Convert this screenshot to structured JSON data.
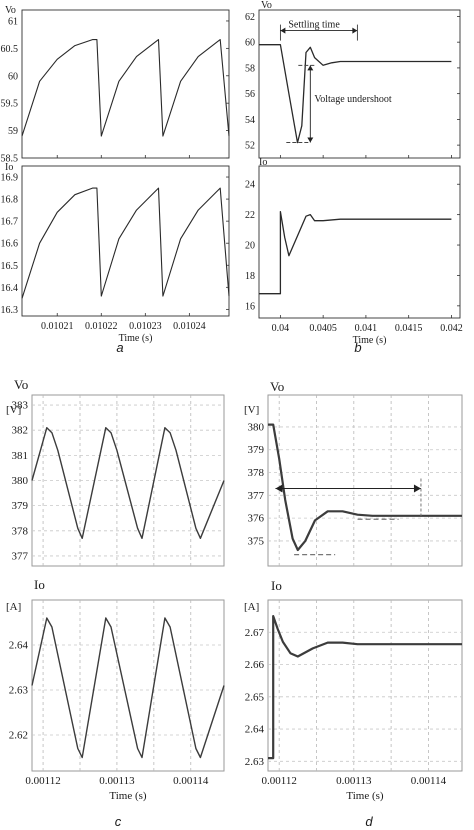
{
  "chart_data": [
    {
      "id": "a-top",
      "type": "line",
      "panel": "a",
      "ylabel": "Vo",
      "xlim": [
        0.010202,
        0.010249
      ],
      "ylim": [
        58.5,
        61.2
      ],
      "yticks": [
        "61",
        "60.5",
        "60",
        "59.5",
        "59",
        "58.5"
      ],
      "ytick_values": [
        61,
        60.5,
        60,
        59.5,
        59,
        58.5
      ],
      "xticks": [],
      "xtick_values": [
        0.01021,
        0.01022,
        0.01023,
        0.01024
      ],
      "grid": false,
      "series": [
        {
          "x": [
            0.010202,
            0.010206,
            0.01021,
            0.010214,
            0.010218,
            0.010219,
            0.01022,
            0.010224,
            0.010228,
            0.010232,
            0.010233,
            0.010234,
            0.010238,
            0.010242,
            0.010246,
            0.010247,
            0.010249
          ],
          "y": [
            58.9,
            59.9,
            60.3,
            60.55,
            60.66,
            60.66,
            58.9,
            59.9,
            60.35,
            60.6,
            60.66,
            58.9,
            59.9,
            60.35,
            60.6,
            60.66,
            58.9
          ]
        }
      ]
    },
    {
      "id": "a-bottom",
      "type": "line",
      "panel": "a",
      "ylabel": "Io",
      "xlim": [
        0.010202,
        0.010249
      ],
      "ylim": [
        16.27,
        16.95
      ],
      "yticks": [
        "16.9",
        "16.8",
        "16.7",
        "16.6",
        "16.5",
        "16.4",
        "16.3"
      ],
      "ytick_values": [
        16.9,
        16.8,
        16.7,
        16.6,
        16.5,
        16.4,
        16.3
      ],
      "xticks": [
        "0.01021",
        "0.01022",
        "0.01023",
        "0.01024"
      ],
      "xtick_values": [
        0.01021,
        0.01022,
        0.01023,
        0.01024
      ],
      "xlabel": "Time (s)",
      "grid": false,
      "series": [
        {
          "x": [
            0.010202,
            0.010206,
            0.01021,
            0.010214,
            0.010218,
            0.010219,
            0.01022,
            0.010224,
            0.010228,
            0.010232,
            0.010233,
            0.010234,
            0.010238,
            0.010242,
            0.010246,
            0.010247,
            0.010249
          ],
          "y": [
            16.35,
            16.6,
            16.74,
            16.82,
            16.85,
            16.85,
            16.36,
            16.62,
            16.75,
            16.83,
            16.85,
            16.36,
            16.62,
            16.75,
            16.83,
            16.85,
            16.36
          ]
        }
      ]
    },
    {
      "id": "b-top",
      "type": "line",
      "panel": "b",
      "ylabel": "Vo",
      "xlim": [
        0.03975,
        0.0421
      ],
      "ylim": [
        51,
        62.5
      ],
      "yticks": [
        "62",
        "60",
        "58",
        "56",
        "54",
        "52"
      ],
      "ytick_values": [
        62,
        60,
        58,
        56,
        54,
        52
      ],
      "xticks": [],
      "xtick_values": [
        0.04,
        0.0405,
        0.041,
        0.0415,
        0.042
      ],
      "grid": false,
      "series": [
        {
          "x": [
            0.03975,
            0.04,
            0.0401,
            0.0402,
            0.04025,
            0.0403,
            0.04035,
            0.0404,
            0.0405,
            0.0406,
            0.0407,
            0.042
          ],
          "y": [
            59.8,
            59.8,
            56,
            52.2,
            53.5,
            59.2,
            59.6,
            58.8,
            58.2,
            58.4,
            58.5,
            58.5
          ]
        }
      ],
      "annotations": [
        {
          "text": "Settling time",
          "x_start": 0.04,
          "x_end": 0.0409,
          "y": 60.9
        },
        {
          "text": "Voltage undershoot",
          "x": 0.04035,
          "y_top": 58.2,
          "y_bottom": 52.2
        }
      ]
    },
    {
      "id": "b-bottom",
      "type": "line",
      "panel": "b",
      "ylabel": "Io",
      "xlim": [
        0.03975,
        0.0421
      ],
      "ylim": [
        15.2,
        25.2
      ],
      "yticks": [
        "24",
        "22",
        "20",
        "18",
        "16"
      ],
      "ytick_values": [
        24,
        22,
        20,
        18,
        16
      ],
      "xticks": [
        "0.04",
        "0.0405",
        "0.041",
        "0.0415",
        "0.042"
      ],
      "xtick_values": [
        0.04,
        0.0405,
        0.041,
        0.0415,
        0.042
      ],
      "xlabel": "Time (s)",
      "grid": false,
      "series": [
        {
          "x": [
            0.03975,
            0.04,
            0.04,
            0.04005,
            0.0401,
            0.0402,
            0.0403,
            0.04035,
            0.0404,
            0.0405,
            0.0407,
            0.042
          ],
          "y": [
            16.8,
            16.8,
            22.2,
            20.5,
            19.3,
            20.6,
            21.9,
            22.0,
            21.6,
            21.6,
            21.7,
            21.7
          ]
        }
      ]
    },
    {
      "id": "c-top",
      "type": "line",
      "panel": "c",
      "ylabel": "Vo",
      "yunit": "[V]",
      "xlim": [
        0.0011185,
        0.0011445
      ],
      "ylim": [
        376.6,
        383.4
      ],
      "yticks": [
        "383",
        "382",
        "381",
        "380",
        "379",
        "378",
        "377"
      ],
      "ytick_values": [
        383,
        382,
        381,
        380,
        379,
        378,
        377
      ],
      "xticks": [],
      "xtick_values": [
        0.00112,
        0.001125,
        0.00113,
        0.001135,
        0.00114
      ],
      "grid": true,
      "series": [
        {
          "x": [
            0.0011185,
            0.0011205,
            0.0011212,
            0.001122,
            0.0011247,
            0.0011253,
            0.0011285,
            0.0011292,
            0.00113,
            0.0011328,
            0.0011334,
            0.0011365,
            0.0011372,
            0.001138,
            0.0011407,
            0.0011413,
            0.0011445
          ],
          "y": [
            380,
            382.1,
            381.9,
            381.2,
            378.1,
            377.7,
            382.1,
            381.9,
            381.2,
            378.1,
            377.7,
            382.1,
            381.9,
            381.2,
            378.1,
            377.7,
            380
          ]
        }
      ]
    },
    {
      "id": "c-bottom",
      "type": "line",
      "panel": "c",
      "ylabel": "Io",
      "yunit": "[A]",
      "xlim": [
        0.0011185,
        0.0011445
      ],
      "ylim": [
        2.612,
        2.65
      ],
      "yticks": [
        "2.64",
        "2.63",
        "2.62"
      ],
      "ytick_values": [
        2.64,
        2.63,
        2.62
      ],
      "xticks": [
        "0.00112",
        "0.00113",
        "0.00114"
      ],
      "xtick_values": [
        0.00112,
        0.00113,
        0.00114
      ],
      "xtick_grid": [
        0.00112,
        0.001125,
        0.00113,
        0.001135,
        0.00114
      ],
      "xlabel": "Time (s)",
      "grid": true,
      "series": [
        {
          "x": [
            0.0011185,
            0.0011205,
            0.0011212,
            0.0011247,
            0.0011253,
            0.0011285,
            0.0011292,
            0.0011328,
            0.0011334,
            0.0011365,
            0.0011372,
            0.0011407,
            0.0011413,
            0.0011445
          ],
          "y": [
            2.631,
            2.646,
            2.644,
            2.617,
            2.615,
            2.646,
            2.644,
            2.617,
            2.615,
            2.646,
            2.644,
            2.617,
            2.615,
            2.631
          ]
        }
      ]
    },
    {
      "id": "d-top",
      "type": "line",
      "panel": "d",
      "ylabel": "Vo",
      "yunit": "[V]",
      "xlim": [
        0.0011185,
        0.0011445
      ],
      "ylim": [
        373.9,
        381.4
      ],
      "yticks": [
        "380",
        "379",
        "378",
        "377",
        "376",
        "375"
      ],
      "ytick_values": [
        380,
        379,
        378,
        377,
        376,
        375
      ],
      "xticks": [],
      "xtick_values": [
        0.00112,
        0.001125,
        0.00113,
        0.001135,
        0.00114
      ],
      "grid": true,
      "series": [
        {
          "x": [
            0.0011185,
            0.0011192,
            0.00112,
            0.0011208,
            0.0011218,
            0.0011225,
            0.0011235,
            0.0011248,
            0.0011265,
            0.0011285,
            0.0011305,
            0.0011325,
            0.0011445
          ],
          "y": [
            380.1,
            380.1,
            378.6,
            376.8,
            375.1,
            374.6,
            375.0,
            375.9,
            376.3,
            376.3,
            376.15,
            376.1,
            376.1
          ]
        }
      ],
      "annotations": [
        {
          "type": "double-arrow",
          "x_start": 0.0011195,
          "x_end": 0.001139,
          "y": 377.3
        },
        {
          "type": "dashed-level",
          "x_start": 0.001122,
          "x_end": 0.0011275,
          "y": 374.4
        },
        {
          "type": "dashed-level",
          "x_start": 0.0011305,
          "x_end": 0.001136,
          "y": 375.95
        }
      ]
    },
    {
      "id": "d-bottom",
      "type": "line",
      "panel": "d",
      "ylabel": "Io",
      "yunit": "[A]",
      "xlim": [
        0.0011185,
        0.0011445
      ],
      "ylim": [
        2.627,
        2.68
      ],
      "yticks": [
        "2.67",
        "2.66",
        "2.65",
        "2.64",
        "2.63"
      ],
      "ytick_values": [
        2.67,
        2.66,
        2.65,
        2.64,
        2.63
      ],
      "xticks": [
        "0.00112",
        "0.00113",
        "0.00114"
      ],
      "xtick_values": [
        0.00112,
        0.00113,
        0.00114
      ],
      "xtick_grid": [
        0.00112,
        0.001125,
        0.00113,
        0.001135,
        0.00114
      ],
      "xlabel": "Time (s)",
      "grid": true,
      "series": [
        {
          "x": [
            0.0011185,
            0.0011192,
            0.0011192,
            0.0011198,
            0.0011205,
            0.0011215,
            0.0011225,
            0.0011245,
            0.0011265,
            0.0011285,
            0.0011305,
            0.0011445
          ],
          "y": [
            2.631,
            2.631,
            2.675,
            2.671,
            2.667,
            2.6635,
            2.6625,
            2.665,
            2.6668,
            2.6668,
            2.6663,
            2.6663
          ]
        }
      ]
    }
  ],
  "panel_labels": {
    "a": "a",
    "b": "b",
    "c": "c",
    "d": "d"
  }
}
